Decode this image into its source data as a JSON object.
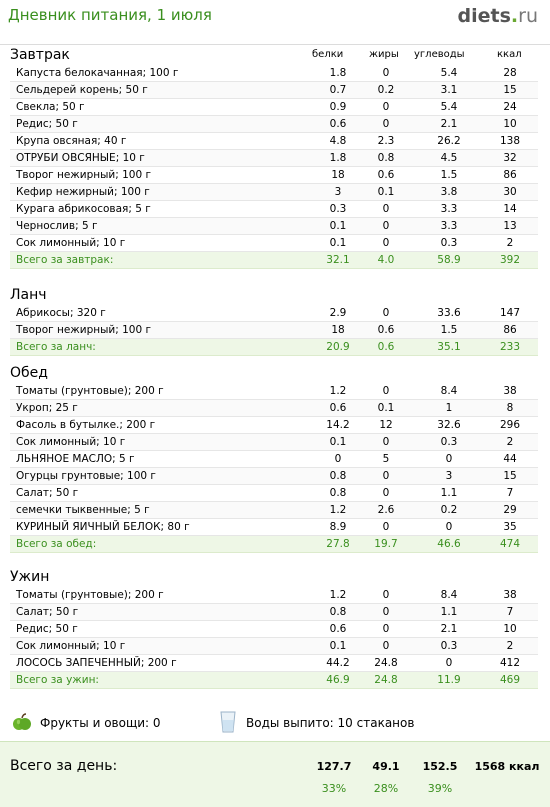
{
  "header": {
    "title": "Дневник питания, 1 июля",
    "logo_main": "diets",
    "logo_dot": ".",
    "logo_tld": "ru"
  },
  "columns": {
    "protein": "белки",
    "fat": "жиры",
    "carbs": "углеводы",
    "kcal": "ккал"
  },
  "sections": [
    {
      "title": "Завтрак",
      "items": [
        [
          "Капуста белокачанная; 100 г",
          "1.8",
          "0",
          "5.4",
          "28"
        ],
        [
          "Сельдерей корень; 50 г",
          "0.7",
          "0.2",
          "3.1",
          "15"
        ],
        [
          "Свекла; 50 г",
          "0.9",
          "0",
          "5.4",
          "24"
        ],
        [
          "Редис; 50 г",
          "0.6",
          "0",
          "2.1",
          "10"
        ],
        [
          "Крупа овсяная; 40 г",
          "4.8",
          "2.3",
          "26.2",
          "138"
        ],
        [
          "ОТРУБИ ОВСЯНЫЕ; 10 г",
          "1.8",
          "0.8",
          "4.5",
          "32"
        ],
        [
          "Творог нежирный; 100 г",
          "18",
          "0.6",
          "1.5",
          "86"
        ],
        [
          "Кефир нежирный; 100 г",
          "3",
          "0.1",
          "3.8",
          "30"
        ],
        [
          "Курага абрикосовая; 5 г",
          "0.3",
          "0",
          "3.3",
          "14"
        ],
        [
          "Чернослив; 5 г",
          "0.1",
          "0",
          "3.3",
          "13"
        ],
        [
          "Сок лимонный; 10 г",
          "0.1",
          "0",
          "0.3",
          "2"
        ]
      ],
      "total": [
        "Всего за завтрак:",
        "32.1",
        "4.0",
        "58.9",
        "392"
      ]
    },
    {
      "title": "Ланч",
      "items": [
        [
          "Абрикосы; 320 г",
          "2.9",
          "0",
          "33.6",
          "147"
        ],
        [
          "Творог нежирный; 100 г",
          "18",
          "0.6",
          "1.5",
          "86"
        ]
      ],
      "total": [
        "Всего за ланч:",
        "20.9",
        "0.6",
        "35.1",
        "233"
      ]
    },
    {
      "title": "Обед",
      "items": [
        [
          "Томаты (грунтовые); 200 г",
          "1.2",
          "0",
          "8.4",
          "38"
        ],
        [
          "Укроп; 25 г",
          "0.6",
          "0.1",
          "1",
          "8"
        ],
        [
          "Фасоль в бутылке.; 200 г",
          "14.2",
          "12",
          "32.6",
          "296"
        ],
        [
          "Сок лимонный; 10 г",
          "0.1",
          "0",
          "0.3",
          "2"
        ],
        [
          "ЛЬНЯНОЕ МАСЛО; 5 г",
          "0",
          "5",
          "0",
          "44"
        ],
        [
          "Огурцы грунтовые; 100 г",
          "0.8",
          "0",
          "3",
          "15"
        ],
        [
          "Салат; 50 г",
          "0.8",
          "0",
          "1.1",
          "7"
        ],
        [
          "семечки тыквенные; 5 г",
          "1.2",
          "2.6",
          "0.2",
          "29"
        ],
        [
          "КУРИНЫЙ ЯИЧНЫЙ БЕЛОК; 80 г",
          "8.9",
          "0",
          "0",
          "35"
        ]
      ],
      "total": [
        "Всего за обед:",
        "27.8",
        "19.7",
        "46.6",
        "474"
      ]
    },
    {
      "title": "Ужин",
      "items": [
        [
          "Томаты (грунтовые); 200 г",
          "1.2",
          "0",
          "8.4",
          "38"
        ],
        [
          "Салат; 50 г",
          "0.8",
          "0",
          "1.1",
          "7"
        ],
        [
          "Редис; 50 г",
          "0.6",
          "0",
          "2.1",
          "10"
        ],
        [
          "Сок лимонный; 10 г",
          "0.1",
          "0",
          "0.3",
          "2"
        ],
        [
          "ЛОСОСЬ ЗАПЕЧЕННЫЙ; 200 г",
          "44.2",
          "24.8",
          "0",
          "412"
        ]
      ],
      "total": [
        "Всего за ужин:",
        "46.9",
        "24.8",
        "11.9",
        "469"
      ]
    }
  ],
  "extras": {
    "fruits": "Фрукты и овощи: 0",
    "water": "Воды выпито: 10 стаканов"
  },
  "day_total": {
    "label": "Всего за день:",
    "protein": "127.7",
    "fat": "49.1",
    "carbs": "152.5",
    "kcal": "1568 ккал",
    "protein_pct": "33%",
    "fat_pct": "28%",
    "carbs_pct": "39%"
  },
  "colors": {
    "accent_green": "#3a8f1e",
    "total_bg": "#eef7e6"
  },
  "icons": {
    "fruits": "apple-icon",
    "water": "water-glass-icon"
  }
}
